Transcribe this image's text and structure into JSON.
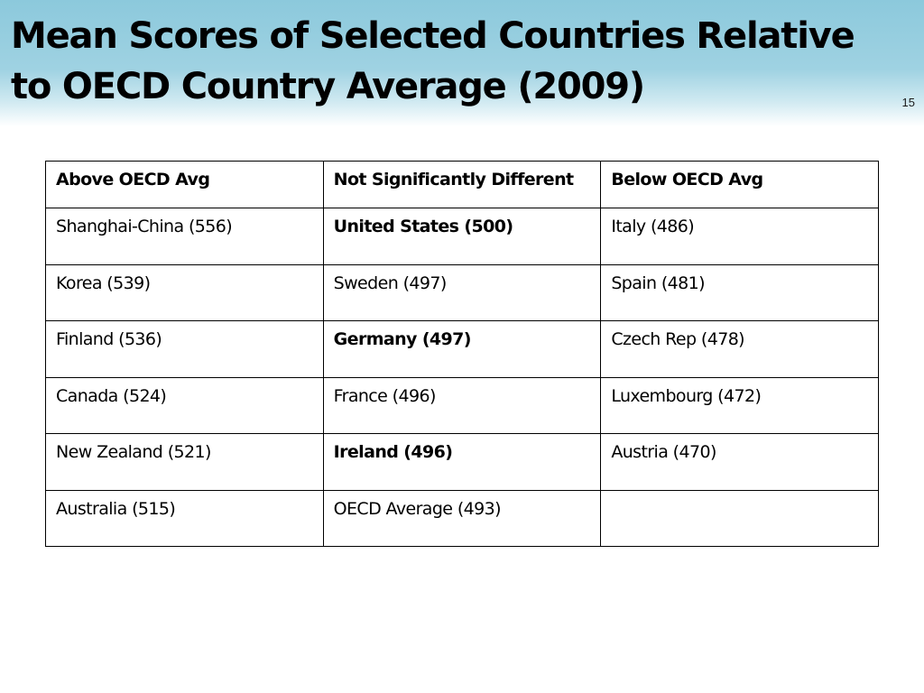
{
  "slide": {
    "title": "Mean Scores of Selected Countries Relative to OECD Country Average (2009)",
    "number": "15"
  },
  "table": {
    "headers": [
      "Above OECD Avg",
      "Not  Significantly Different",
      "Below OECD Avg"
    ],
    "rows": [
      {
        "above": "Shanghai-China (556)",
        "not_different": "United States (500)",
        "not_different_bold": true,
        "below": "Italy (486)"
      },
      {
        "above": "Korea (539)",
        "not_different": "Sweden (497)",
        "not_different_bold": false,
        "below": "Spain (481)"
      },
      {
        "above": "Finland (536)",
        "not_different": "Germany (497)",
        "not_different_bold": true,
        "below": "Czech Rep (478)"
      },
      {
        "above": "Canada (524)",
        "not_different": "France (496)",
        "not_different_bold": false,
        "below": "Luxembourg (472)"
      },
      {
        "above": "New Zealand (521)",
        "not_different": "Ireland (496)",
        "not_different_bold": true,
        "below": "Austria (470)"
      },
      {
        "above": "Australia (515)",
        "not_different": "OECD Average (493)",
        "not_different_bold": false,
        "below": ""
      }
    ]
  },
  "colors": {
    "title_band": "#8cc9dc",
    "border": "#000000",
    "text": "#000000"
  }
}
